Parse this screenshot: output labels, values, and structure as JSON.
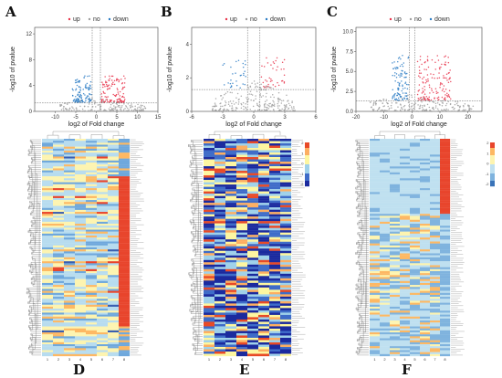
{
  "figure": {
    "panel_labels": [
      "A",
      "B",
      "C",
      "D",
      "E",
      "F"
    ],
    "legend": {
      "up": "up",
      "no": "no",
      "down": "down"
    }
  },
  "chart_data": [
    {
      "id": "A",
      "type": "scatter",
      "xlabel": "log2 of Fold change",
      "ylabel": "-log10 of pvalue",
      "xlim": [
        -15,
        15
      ],
      "ylim": [
        0,
        13
      ],
      "xticks": [
        -10,
        -5,
        0,
        5,
        10,
        15
      ],
      "yticks": [
        0,
        4,
        8,
        12
      ],
      "xtick_labels": [
        "-10",
        "-5",
        "0",
        "5",
        "10",
        "15"
      ],
      "ytick_labels": [
        "0",
        "4",
        "8",
        "12"
      ],
      "thresholds": {
        "x": [
          -1,
          1
        ],
        "y": 1.3
      },
      "series": [
        {
          "name": "up",
          "color": "#e8334a",
          "n": 120,
          "x_range": [
            1.2,
            7
          ],
          "y_range": [
            1.4,
            5.5
          ]
        },
        {
          "name": "no",
          "color": "#9e9e9e",
          "n": 200,
          "x_range": [
            -9,
            12
          ],
          "y_range": [
            0,
            2.2
          ]
        },
        {
          "name": "down",
          "color": "#2a7bc4",
          "n": 110,
          "x_range": [
            -6,
            -1.2
          ],
          "y_range": [
            1.4,
            5.5
          ]
        }
      ]
    },
    {
      "id": "B",
      "type": "scatter",
      "xlabel": "log2 of Fold change",
      "ylabel": "-log10 of pvalue",
      "xlim": [
        -6,
        6
      ],
      "ylim": [
        0,
        5
      ],
      "xticks": [
        -6,
        -3,
        0,
        3,
        6
      ],
      "yticks": [
        0,
        2,
        4
      ],
      "xtick_labels": [
        "-6",
        "-3",
        "0",
        "3",
        "6"
      ],
      "ytick_labels": [
        "0",
        "2",
        "4"
      ],
      "thresholds": {
        "x": [
          -0.6,
          0.6
        ],
        "y": 1.3
      },
      "series": [
        {
          "name": "up",
          "color": "#e8334a",
          "n": 40,
          "x_range": [
            0.7,
            3
          ],
          "y_range": [
            1.4,
            3.2
          ]
        },
        {
          "name": "no",
          "color": "#9e9e9e",
          "n": 260,
          "x_range": [
            -4,
            4
          ],
          "y_range": [
            0,
            1.9
          ]
        },
        {
          "name": "down",
          "color": "#2a7bc4",
          "n": 30,
          "x_range": [
            -3,
            -0.7
          ],
          "y_range": [
            1.4,
            3.2
          ]
        }
      ]
    },
    {
      "id": "C",
      "type": "scatter",
      "xlabel": "log2 of Fold change",
      "ylabel": "-log10 of pvalue",
      "xlim": [
        -20,
        25
      ],
      "ylim": [
        0,
        10.5
      ],
      "xticks": [
        -20,
        -10,
        0,
        10,
        20
      ],
      "yticks": [
        0,
        2.5,
        5,
        7.5,
        10
      ],
      "xtick_labels": [
        "-20",
        "-10",
        "0",
        "10",
        "20"
      ],
      "ytick_labels": [
        "0.0",
        "2.5",
        "5.0",
        "7.5",
        "10.0"
      ],
      "thresholds": {
        "x": [
          -1,
          1
        ],
        "y": 1.3
      },
      "series": [
        {
          "name": "up",
          "color": "#e8334a",
          "n": 140,
          "x_range": [
            2,
            14
          ],
          "y_range": [
            1.4,
            7
          ]
        },
        {
          "name": "no",
          "color": "#9e9e9e",
          "n": 220,
          "x_range": [
            -15,
            22
          ],
          "y_range": [
            0,
            2.2
          ]
        },
        {
          "name": "down",
          "color": "#2a7bc4",
          "n": 100,
          "x_range": [
            -7,
            -1.2
          ],
          "y_range": [
            1.4,
            7
          ]
        }
      ]
    },
    {
      "id": "D",
      "type": "heatmap",
      "rows": 110,
      "cols": 8,
      "palette": [
        "#3a5fb0",
        "#6fa8dc",
        "#b7dcef",
        "#fdf4b0",
        "#fdb863",
        "#e8452c"
      ],
      "highlight_cols": [
        7
      ],
      "scale_labels": [],
      "colorbar": false,
      "col_labels": [
        "1",
        "2",
        "3",
        "4",
        "5",
        "6",
        "7",
        "8"
      ],
      "row_labels": []
    },
    {
      "id": "E",
      "type": "heatmap",
      "rows": 95,
      "cols": 8,
      "palette": [
        "#1b2a9e",
        "#3f6cc8",
        "#9fd1ea",
        "#fdf6a0",
        "#fdae61",
        "#e84a27"
      ],
      "highlight_cols": [],
      "scale_labels": [
        "2",
        "1",
        "0",
        "-1",
        "-2"
      ],
      "colorbar": true,
      "col_labels": [
        "1",
        "2",
        "3",
        "4",
        "5",
        "6",
        "7",
        "8"
      ],
      "row_labels": []
    },
    {
      "id": "F",
      "type": "heatmap",
      "rows": 110,
      "cols": 8,
      "palette": [
        "#3a73b8",
        "#7fb3de",
        "#bfe0f0",
        "#fdf4b0",
        "#fdb863",
        "#e8452c"
      ],
      "highlight_cols": [
        7
      ],
      "scale_labels": [
        "2",
        "1",
        "0",
        "-1",
        "-2"
      ],
      "colorbar": true,
      "col_labels": [
        "1",
        "2",
        "3",
        "4",
        "5",
        "6",
        "7",
        "8"
      ],
      "row_labels": []
    }
  ]
}
